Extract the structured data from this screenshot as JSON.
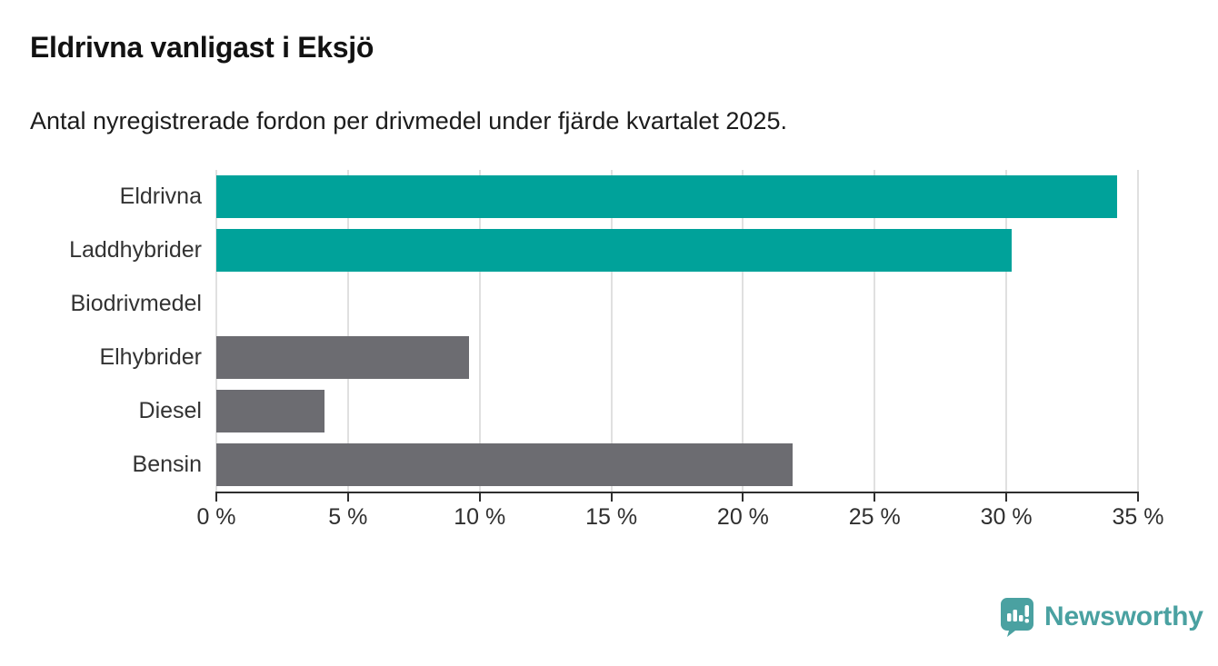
{
  "header": {
    "title": "Eldrivna vanligast i Eksjö",
    "subtitle": "Antal nyregistrerade fordon per drivmedel under fjärde kvartalet 2025."
  },
  "chart_data": {
    "type": "bar",
    "orientation": "horizontal",
    "title": "Eldrivna vanligast i Eksjö",
    "subtitle": "Antal nyregistrerade fordon per drivmedel under fjärde kvartalet 2025.",
    "categories": [
      "Eldrivna",
      "Laddhybrider",
      "Biodrivmedel",
      "Elhybrider",
      "Diesel",
      "Bensin"
    ],
    "values": [
      34.2,
      30.2,
      0,
      9.6,
      4.1,
      21.9
    ],
    "unit": "%",
    "bar_colors": [
      "#00a29a",
      "#00a29a",
      "#6c6c71",
      "#6c6c71",
      "#6c6c71",
      "#6c6c71"
    ],
    "highlight_color": "#00a29a",
    "default_bar_color": "#6c6c71",
    "xlim": [
      0,
      35
    ],
    "x_tick_step": 5,
    "x_tick_labels": [
      "0 %",
      "5 %",
      "10 %",
      "15 %",
      "20 %",
      "25 %",
      "30 %",
      "35 %"
    ],
    "xlabel": "",
    "ylabel": "",
    "grid": "vertical",
    "gridline_color": "#e0e0e0",
    "axis_color": "#2e2e2e",
    "legend": "none"
  },
  "branding": {
    "name": "Newsworthy",
    "color": "#4aa1a1",
    "icon": "newsworthy-speech-bubble-chart-icon"
  }
}
